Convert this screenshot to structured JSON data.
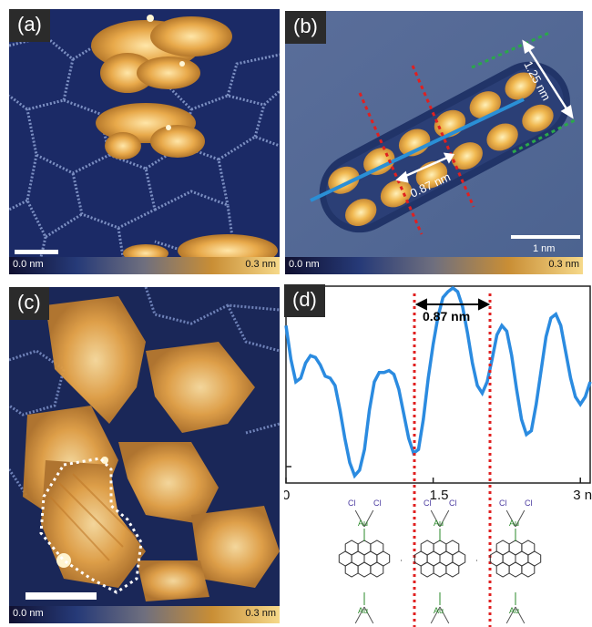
{
  "panels": {
    "a": {
      "label": "(a)",
      "cbar_min": "0.0 nm",
      "cbar_max": "0.3 nm"
    },
    "b": {
      "label": "(b)",
      "cbar_min": "0.0 nm",
      "cbar_max": "0.3 nm",
      "width_label": "1.25 nm",
      "spacing_label": "0.87 nm",
      "scalebar_label": "1 nm"
    },
    "c": {
      "label": "(c)",
      "cbar_min": "0.0 nm",
      "cbar_max": "0.3 nm"
    },
    "d": {
      "label": "(d)",
      "spacing_label": "0.87 nm"
    }
  },
  "chart_data": {
    "type": "line",
    "x_ticks": [
      "0",
      "1.5",
      "3 nm"
    ],
    "xlim": [
      0,
      3.1
    ],
    "series": [
      {
        "color": "#2b8be0",
        "x": [
          0.0,
          0.05,
          0.1,
          0.15,
          0.2,
          0.25,
          0.3,
          0.35,
          0.4,
          0.45,
          0.5,
          0.55,
          0.6,
          0.65,
          0.7,
          0.75,
          0.8,
          0.85,
          0.9,
          0.95,
          1.0,
          1.05,
          1.1,
          1.15,
          1.2,
          1.25,
          1.3,
          1.35,
          1.4,
          1.45,
          1.5,
          1.55,
          1.6,
          1.65,
          1.7,
          1.75,
          1.8,
          1.85,
          1.9,
          1.95,
          2.0,
          2.05,
          2.1,
          2.15,
          2.2,
          2.25,
          2.3,
          2.35,
          2.4,
          2.45,
          2.5,
          2.55,
          2.6,
          2.65,
          2.7,
          2.75,
          2.8,
          2.85,
          2.9,
          2.95,
          3.0,
          3.05,
          3.1
        ],
        "y": [
          0.8,
          0.62,
          0.5,
          0.52,
          0.6,
          0.64,
          0.63,
          0.59,
          0.53,
          0.52,
          0.48,
          0.35,
          0.2,
          0.07,
          0.0,
          0.03,
          0.14,
          0.35,
          0.5,
          0.55,
          0.55,
          0.56,
          0.54,
          0.46,
          0.33,
          0.2,
          0.12,
          0.14,
          0.3,
          0.52,
          0.7,
          0.85,
          0.95,
          0.98,
          1.0,
          0.98,
          0.9,
          0.76,
          0.6,
          0.48,
          0.44,
          0.5,
          0.62,
          0.75,
          0.8,
          0.77,
          0.64,
          0.46,
          0.3,
          0.22,
          0.24,
          0.38,
          0.56,
          0.74,
          0.84,
          0.86,
          0.8,
          0.66,
          0.52,
          0.42,
          0.38,
          0.42,
          0.5
        ]
      }
    ]
  }
}
